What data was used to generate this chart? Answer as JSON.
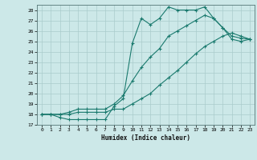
{
  "xlabel": "Humidex (Indice chaleur)",
  "bg_color": "#cce8e8",
  "grid_color": "#aacccc",
  "line_color": "#1a7a6e",
  "xlim": [
    -0.5,
    23.5
  ],
  "ylim": [
    17,
    28.5
  ],
  "xticks": [
    0,
    1,
    2,
    3,
    4,
    5,
    6,
    7,
    8,
    9,
    10,
    11,
    12,
    13,
    14,
    15,
    16,
    17,
    18,
    19,
    20,
    21,
    22,
    23
  ],
  "yticks": [
    17,
    18,
    19,
    20,
    21,
    22,
    23,
    24,
    25,
    26,
    27,
    28
  ],
  "line1_x": [
    0,
    1,
    2,
    3,
    4,
    5,
    6,
    7,
    8,
    9,
    10,
    11,
    12,
    13,
    14,
    15,
    16,
    17,
    18,
    19,
    20,
    21,
    22,
    23
  ],
  "line1_y": [
    18.0,
    18.0,
    17.7,
    17.5,
    17.5,
    17.5,
    17.5,
    17.5,
    18.8,
    19.5,
    24.8,
    27.2,
    26.6,
    27.2,
    28.3,
    28.0,
    28.0,
    28.0,
    28.3,
    27.2,
    26.3,
    25.2,
    25.0,
    25.2
  ],
  "line2_x": [
    0,
    1,
    2,
    3,
    4,
    5,
    6,
    7,
    8,
    9,
    10,
    11,
    12,
    13,
    14,
    15,
    16,
    17,
    18,
    19,
    20,
    21,
    22,
    23
  ],
  "line2_y": [
    18.0,
    18.0,
    18.0,
    18.2,
    18.5,
    18.5,
    18.5,
    18.5,
    19.0,
    19.8,
    21.2,
    22.5,
    23.5,
    24.3,
    25.5,
    26.0,
    26.5,
    27.0,
    27.5,
    27.2,
    26.3,
    25.5,
    25.3,
    25.2
  ],
  "line3_x": [
    0,
    1,
    2,
    3,
    4,
    5,
    6,
    7,
    8,
    9,
    10,
    11,
    12,
    13,
    14,
    15,
    16,
    17,
    18,
    19,
    20,
    21,
    22,
    23
  ],
  "line3_y": [
    18.0,
    18.0,
    18.0,
    18.0,
    18.2,
    18.2,
    18.2,
    18.2,
    18.5,
    18.5,
    19.0,
    19.5,
    20.0,
    20.8,
    21.5,
    22.2,
    23.0,
    23.8,
    24.5,
    25.0,
    25.5,
    25.8,
    25.5,
    25.2
  ]
}
